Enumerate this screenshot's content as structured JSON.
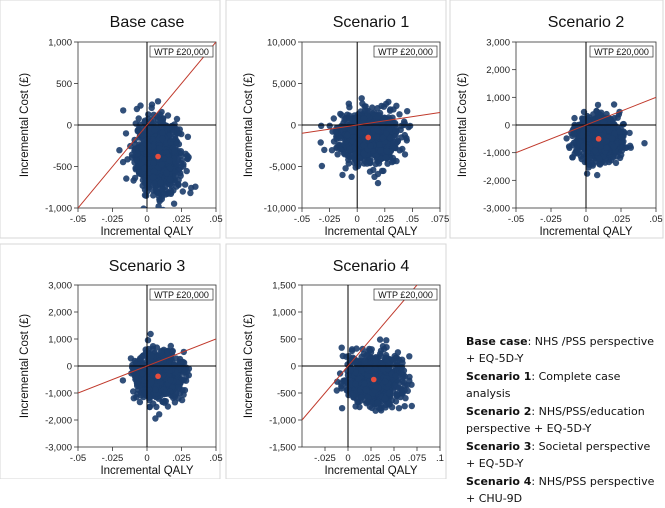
{
  "figure": {
    "legend": [
      {
        "key": "Base case",
        "text": ": NHS /PSS perspective + EQ-5D-Y"
      },
      {
        "key": "Scenario 1",
        "text": ": Complete case analysis"
      },
      {
        "key": "Scenario 2",
        "text": ": NHS/PSS/education perspective + EQ-5D-Y"
      },
      {
        "key": "Scenario 3",
        "text": ": Societal perspective + EQ-5D-Y"
      },
      {
        "key": "Scenario 4",
        "text": ": NHS/PSS perspective + CHU-9D"
      }
    ]
  },
  "chart_data": [
    {
      "type": "scatter",
      "title": "Base case",
      "xlabel": "Incremental QALY",
      "ylabel": "Incremental Cost (£)",
      "xlim": [
        -0.05,
        0.05
      ],
      "ylim": [
        -1000,
        1000
      ],
      "xticks": [
        -0.05,
        -0.025,
        0,
        0.025,
        0.05
      ],
      "xtick_labels": [
        "-.05",
        "-.025",
        "0",
        ".025",
        ".05"
      ],
      "yticks": [
        -1000,
        -500,
        0,
        500,
        1000
      ],
      "ytick_labels": [
        "-1,000",
        "-500",
        "0",
        "500",
        "1,000"
      ],
      "wtp_label": "WTP £20,000",
      "wtp_slope": 20000,
      "mean_point": {
        "x": 0.008,
        "y": -380
      },
      "cloud": {
        "x_sd": 0.008,
        "y_sd": 210,
        "n": 1000
      },
      "grid": false
    },
    {
      "type": "scatter",
      "title": "Scenario 1",
      "xlabel": "Incremental QALY",
      "ylabel": "Incremental Cost (£)",
      "xlim": [
        -0.05,
        0.075
      ],
      "ylim": [
        -10000,
        10000
      ],
      "xticks": [
        -0.05,
        -0.025,
        0,
        0.025,
        0.05,
        0.075
      ],
      "xtick_labels": [
        "-.05",
        "-.025",
        "0",
        ".025",
        ".05",
        ".075"
      ],
      "yticks": [
        -10000,
        -5000,
        0,
        5000,
        10000
      ],
      "ytick_labels": [
        "-10,000",
        "-5,000",
        "0",
        "5,000",
        "10,000"
      ],
      "wtp_label": "WTP £20,000",
      "wtp_slope": 20000,
      "mean_point": {
        "x": 0.01,
        "y": -1500
      },
      "cloud": {
        "x_sd": 0.013,
        "y_sd": 1500,
        "n": 1000
      },
      "grid": false
    },
    {
      "type": "scatter",
      "title": "Scenario 2",
      "xlabel": "Incremental QALY",
      "ylabel": "Incremental Cost (£)",
      "xlim": [
        -0.05,
        0.05
      ],
      "ylim": [
        -3000,
        3000
      ],
      "xticks": [
        -0.05,
        -0.025,
        0,
        0.025,
        0.05
      ],
      "xtick_labels": [
        "-.05",
        "-.025",
        "0",
        ".025",
        ".05"
      ],
      "yticks": [
        -3000,
        -2000,
        -1000,
        0,
        1000,
        2000,
        3000
      ],
      "ytick_labels": [
        "-3,000",
        "-2,000",
        "-1,000",
        "0",
        "1,000",
        "2,000",
        "3,000"
      ],
      "wtp_label": "WTP £20,000",
      "wtp_slope": 20000,
      "mean_point": {
        "x": 0.009,
        "y": -500
      },
      "cloud": {
        "x_sd": 0.008,
        "y_sd": 380,
        "n": 1000
      },
      "grid": false
    },
    {
      "type": "scatter",
      "title": "Scenario 3",
      "xlabel": "Incremental QALY",
      "ylabel": "Incremental Cost (£)",
      "xlim": [
        -0.05,
        0.05
      ],
      "ylim": [
        -3000,
        3000
      ],
      "xticks": [
        -0.05,
        -0.025,
        0,
        0.025,
        0.05
      ],
      "xtick_labels": [
        "-.05",
        "-.025",
        "0",
        ".025",
        ".05"
      ],
      "yticks": [
        -3000,
        -2000,
        -1000,
        0,
        1000,
        2000,
        3000
      ],
      "ytick_labels": [
        "-3,000",
        "-2,000",
        "-1,000",
        "0",
        "1,000",
        "2,000",
        "3,000"
      ],
      "wtp_label": "WTP £20,000",
      "wtp_slope": 20000,
      "mean_point": {
        "x": 0.008,
        "y": -380
      },
      "cloud": {
        "x_sd": 0.008,
        "y_sd": 420,
        "n": 1000
      },
      "grid": false
    },
    {
      "type": "scatter",
      "title": "Scenario 4",
      "xlabel": "Incremental QALY",
      "ylabel": "Incremental Cost (£)",
      "xlim": [
        -0.05,
        0.1
      ],
      "ylim": [
        -1500,
        1500
      ],
      "xticks": [
        -0.025,
        0,
        0.025,
        0.05,
        0.075,
        0.1
      ],
      "xtick_labels": [
        "-.025",
        "0",
        ".025",
        ".05",
        ".075",
        ".1"
      ],
      "yticks": [
        -1500,
        -1000,
        -500,
        0,
        500,
        1000,
        1500
      ],
      "ytick_labels": [
        "-1,500",
        "-1,000",
        "-500",
        "0",
        "500",
        "1,000",
        "1,500"
      ],
      "wtp_label": "WTP £20,000",
      "wtp_slope": 20000,
      "mean_point": {
        "x": 0.028,
        "y": -250
      },
      "cloud": {
        "x_sd": 0.014,
        "y_sd": 230,
        "n": 1000
      },
      "grid": false
    }
  ]
}
